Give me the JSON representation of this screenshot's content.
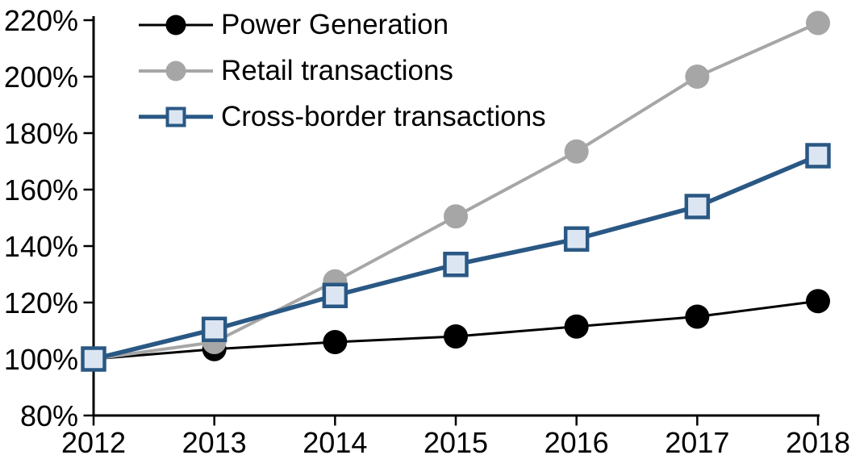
{
  "chart_data": {
    "type": "line",
    "title": "",
    "categories": [
      "2012",
      "2013",
      "2014",
      "2015",
      "2016",
      "2017",
      "2018"
    ],
    "series": [
      {
        "name": "Power Generation",
        "color": "#000000",
        "marker": "circle",
        "marker_fill": "#000000",
        "line_width": 3,
        "values": [
          100,
          103.5,
          106,
          108,
          111.5,
          115,
          120.5
        ]
      },
      {
        "name": "Retail transactions",
        "color": "#a6a6a6",
        "marker": "circle",
        "marker_fill": "#a6a6a6",
        "line_width": 4,
        "values": [
          100,
          106,
          127.5,
          150.5,
          173.5,
          200,
          219
        ]
      },
      {
        "name": "Cross-border transactions",
        "color": "#2a5884",
        "marker": "square",
        "marker_fill": "#dce6f2",
        "line_width": 5.5,
        "values": [
          100,
          110.5,
          122.5,
          133.5,
          142.5,
          154,
          172
        ]
      }
    ],
    "ylim": [
      80,
      220
    ],
    "y_ticks": [
      {
        "value": 220,
        "label": "220%"
      },
      {
        "value": 200,
        "label": "200%"
      },
      {
        "value": 180,
        "label": "180%"
      },
      {
        "value": 160,
        "label": "160%"
      },
      {
        "value": 140,
        "label": "140%"
      },
      {
        "value": 120,
        "label": "120%"
      },
      {
        "value": 100,
        "label": "100%"
      },
      {
        "value": 80,
        "label": "80%"
      }
    ],
    "xlabel": "",
    "ylabel": "",
    "grid": false,
    "legend_position": "top-left-inside",
    "axis_color": "#000000",
    "background_color": "#ffffff"
  }
}
